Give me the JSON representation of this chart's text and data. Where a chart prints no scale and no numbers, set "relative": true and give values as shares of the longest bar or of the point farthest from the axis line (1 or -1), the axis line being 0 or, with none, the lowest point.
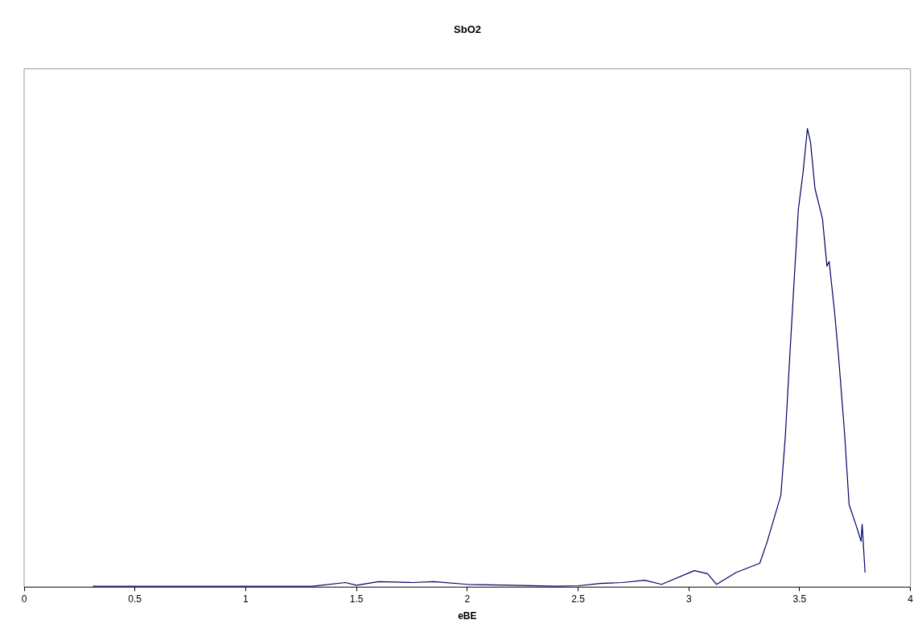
{
  "chart_data": {
    "type": "line",
    "title": "SbO2",
    "xlabel": "eBE",
    "relative": true,
    "xlim": [
      0,
      4
    ],
    "xticks": [
      0,
      0.5,
      1,
      1.5,
      2,
      2.5,
      3,
      3.5,
      4
    ],
    "grid": false,
    "legend": false,
    "marker": "none",
    "line_style": "solid",
    "x": [
      0.31,
      0.36,
      0.65,
      0.68,
      0.74,
      0.95,
      1.2,
      1.3,
      1.45,
      1.5,
      1.6,
      1.75,
      1.85,
      2.0,
      2.2,
      2.4,
      2.5,
      2.6,
      2.7,
      2.8,
      2.877,
      3.025,
      3.085,
      3.125,
      3.213,
      3.32,
      3.354,
      3.415,
      3.435,
      3.455,
      3.475,
      3.494,
      3.515,
      3.535,
      3.549,
      3.569,
      3.603,
      3.623,
      3.633,
      3.657,
      3.676,
      3.703,
      3.723,
      3.756,
      3.777,
      3.782,
      3.795
    ],
    "series": [
      {
        "color": "#000066",
        "values": [
          0.002,
          0.002,
          0.002,
          0.002,
          0.002,
          0.002,
          0.002,
          0.002,
          0.01,
          0.004,
          0.012,
          0.01,
          0.012,
          0.006,
          0.004,
          0.002,
          0.003,
          0.008,
          0.01,
          0.015,
          0.006,
          0.036,
          0.029,
          0.006,
          0.032,
          0.052,
          0.1,
          0.2,
          0.327,
          0.5,
          0.668,
          0.823,
          0.903,
          1,
          0.97,
          0.869,
          0.803,
          0.7,
          0.71,
          0.602,
          0.5,
          0.333,
          0.18,
          0.133,
          0.1,
          0.137,
          0.032
        ]
      }
    ]
  }
}
